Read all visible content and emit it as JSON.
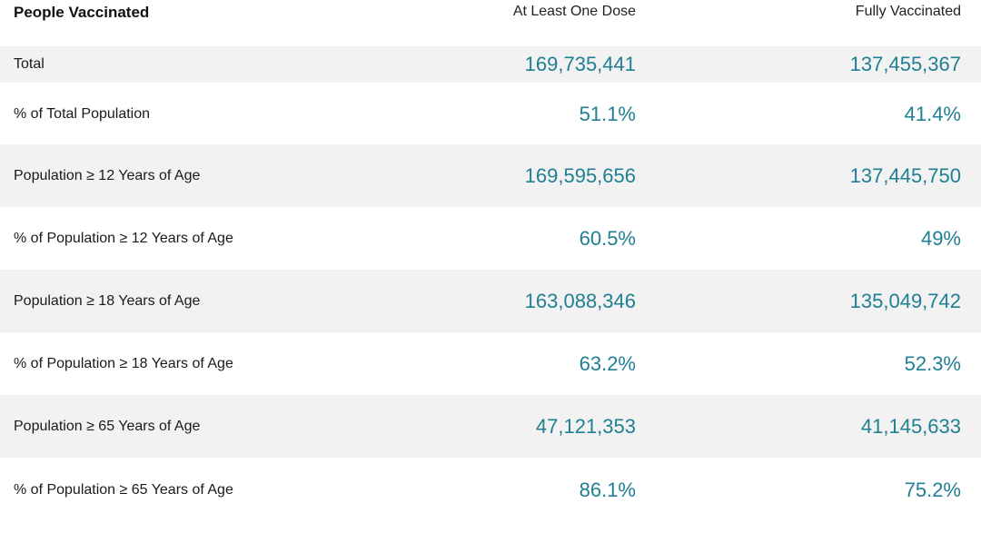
{
  "table": {
    "headers": {
      "label": "People Vaccinated",
      "dose1": "At Least One Dose",
      "full": "Fully Vaccinated"
    },
    "rows": [
      {
        "label": "Total",
        "dose1": "169,735,441",
        "full": "137,455,367"
      },
      {
        "label": "% of Total Population",
        "dose1": "51.1%",
        "full": "41.4%"
      },
      {
        "label": "Population ≥ 12 Years of Age",
        "dose1": "169,595,656",
        "full": "137,445,750"
      },
      {
        "label": "% of Population ≥ 12 Years of Age",
        "dose1": "60.5%",
        "full": "49%"
      },
      {
        "label": "Population ≥ 18 Years of Age",
        "dose1": "163,088,346",
        "full": "135,049,742"
      },
      {
        "label": "% of Population ≥ 18 Years of Age",
        "dose1": "63.2%",
        "full": "52.3%"
      },
      {
        "label": "Population ≥ 65 Years of Age",
        "dose1": "47,121,353",
        "full": "41,145,633"
      },
      {
        "label": "% of Population ≥ 65 Years of Age",
        "dose1": "86.1%",
        "full": "75.2%"
      }
    ]
  },
  "colors": {
    "value_text": "#1f7f93",
    "row_shade": "#f2f2f2"
  }
}
